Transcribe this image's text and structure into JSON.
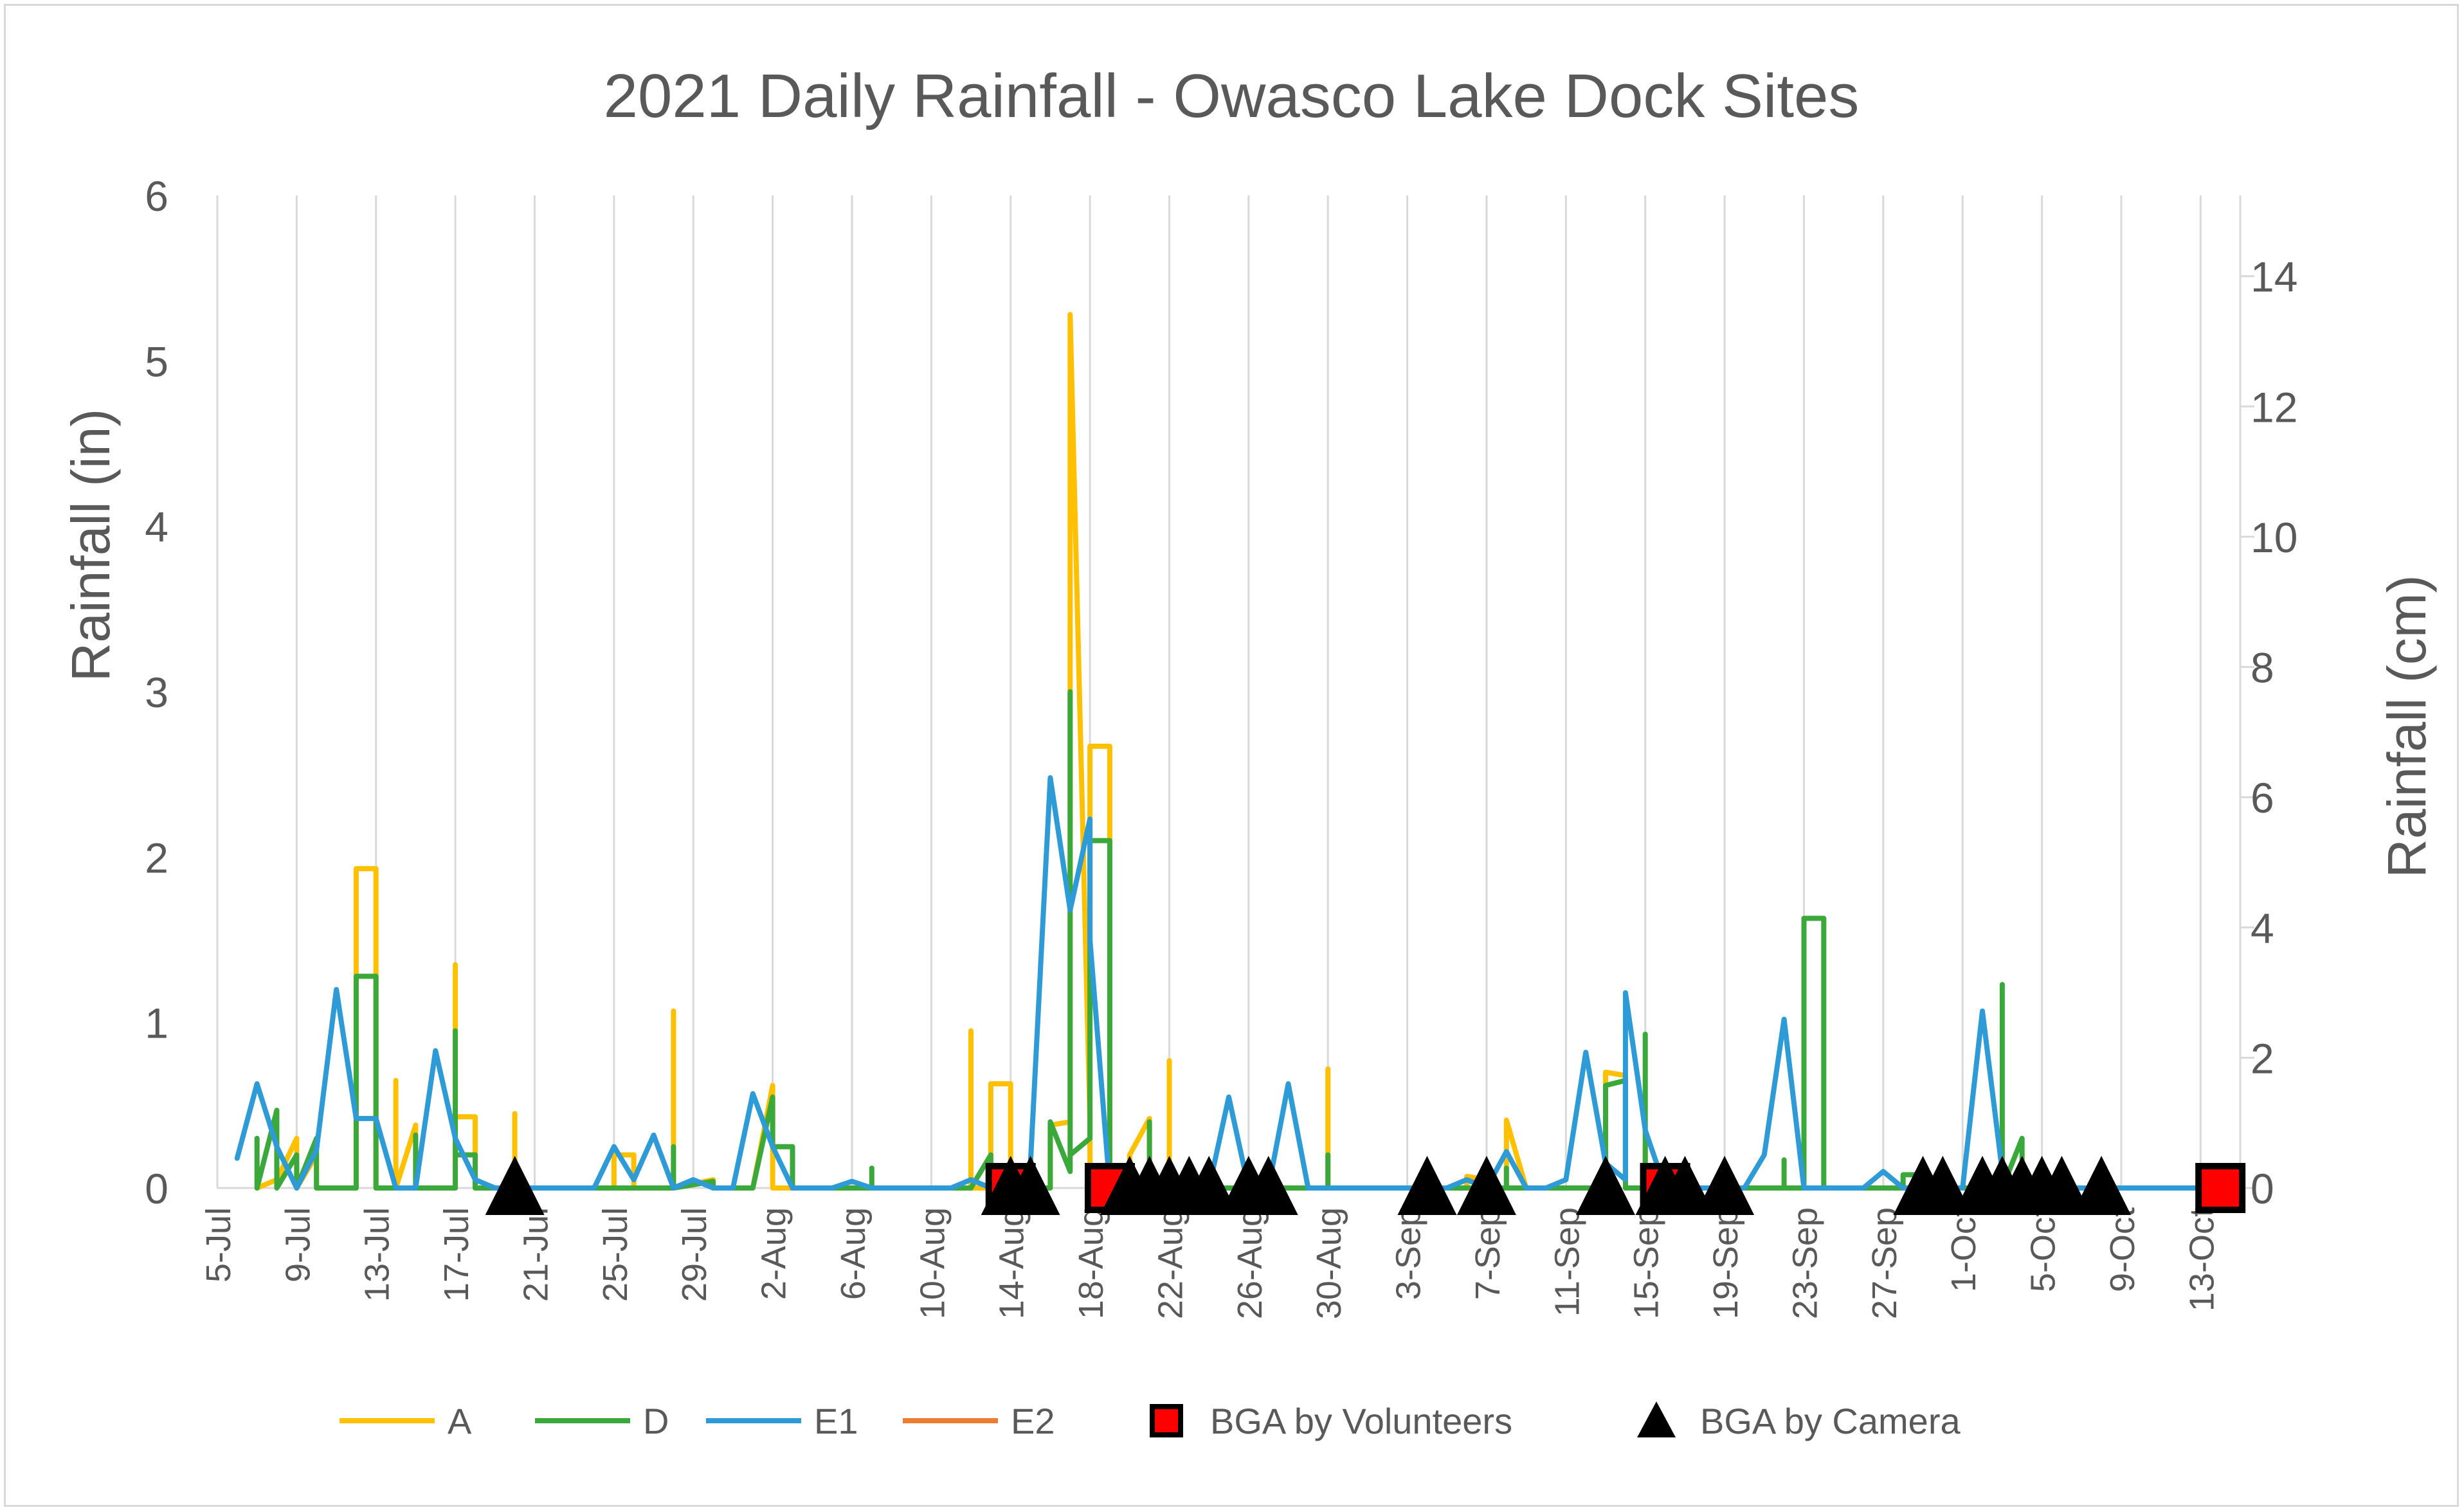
{
  "chart_data": {
    "type": "line",
    "title": "2021 Daily Rainfall - Owasco Lake Dock Sites",
    "ylabel": "Rainfall (in)",
    "y2label": "Rainfall (cm)",
    "xlabel": "",
    "ylim": [
      0,
      6
    ],
    "y2lim": [
      0,
      15.24
    ],
    "yticks": [
      0,
      1,
      2,
      3,
      4,
      5,
      6
    ],
    "y2ticks": [
      0,
      2,
      4,
      6,
      8,
      10,
      12,
      14
    ],
    "xlim": [
      "2021-07-05",
      "2021-10-15"
    ],
    "xticks": [
      {
        "date": "2021-07-05",
        "label": "5-Jul"
      },
      {
        "date": "2021-07-09",
        "label": "9-Jul"
      },
      {
        "date": "2021-07-13",
        "label": "13-Jul"
      },
      {
        "date": "2021-07-17",
        "label": "17-Jul"
      },
      {
        "date": "2021-07-21",
        "label": "21-Jul"
      },
      {
        "date": "2021-07-25",
        "label": "25-Jul"
      },
      {
        "date": "2021-07-29",
        "label": "29-Jul"
      },
      {
        "date": "2021-08-02",
        "label": "2-Aug"
      },
      {
        "date": "2021-08-06",
        "label": "6-Aug"
      },
      {
        "date": "2021-08-10",
        "label": "10-Aug"
      },
      {
        "date": "2021-08-14",
        "label": "14-Aug"
      },
      {
        "date": "2021-08-18",
        "label": "18-Aug"
      },
      {
        "date": "2021-08-22",
        "label": "22-Aug"
      },
      {
        "date": "2021-08-26",
        "label": "26-Aug"
      },
      {
        "date": "2021-08-30",
        "label": "30-Aug"
      },
      {
        "date": "2021-09-03",
        "label": "3-Sep"
      },
      {
        "date": "2021-09-07",
        "label": "7-Sep"
      },
      {
        "date": "2021-09-11",
        "label": "11-Sep"
      },
      {
        "date": "2021-09-15",
        "label": "15-Sep"
      },
      {
        "date": "2021-09-19",
        "label": "19-Sep"
      },
      {
        "date": "2021-09-23",
        "label": "23-Sep"
      },
      {
        "date": "2021-09-27",
        "label": "27-Sep"
      },
      {
        "date": "2021-10-01",
        "label": "1-Oct"
      },
      {
        "date": "2021-10-05",
        "label": "5-Oct"
      },
      {
        "date": "2021-10-09",
        "label": "9-Oct"
      },
      {
        "date": "2021-10-13",
        "label": "13-Oct"
      }
    ],
    "grid": "vertical",
    "legend_position": "bottom",
    "series": [
      {
        "name": "A",
        "color": "#FFC000",
        "points": [
          [
            "2021-07-07",
            0
          ],
          [
            "2021-07-08",
            0.05
          ],
          [
            "2021-07-09",
            0.3
          ],
          [
            "2021-07-09",
            0
          ],
          [
            "2021-07-10",
            0.2
          ],
          [
            "2021-07-10",
            0
          ],
          [
            "2021-07-12",
            0
          ],
          [
            "2021-07-12",
            1.88
          ],
          [
            "2021-07-12",
            1.93
          ],
          [
            "2021-07-13",
            1.93
          ],
          [
            "2021-07-13",
            0
          ],
          [
            "2021-07-14",
            0
          ],
          [
            "2021-07-14",
            0.65
          ],
          [
            "2021-07-14",
            0
          ],
          [
            "2021-07-15",
            0.38
          ],
          [
            "2021-07-15",
            0
          ],
          [
            "2021-07-17",
            0
          ],
          [
            "2021-07-17",
            0.4
          ],
          [
            "2021-07-17",
            1.35
          ],
          [
            "2021-07-17",
            0.43
          ],
          [
            "2021-07-18",
            0.43
          ],
          [
            "2021-07-18",
            0
          ],
          [
            "2021-07-20",
            0
          ],
          [
            "2021-07-20",
            0.45
          ],
          [
            "2021-07-20",
            0
          ],
          [
            "2021-07-25",
            0
          ],
          [
            "2021-07-25",
            0.2
          ],
          [
            "2021-07-26",
            0.2
          ],
          [
            "2021-07-26",
            0
          ],
          [
            "2021-07-28",
            0
          ],
          [
            "2021-07-28",
            1.07
          ],
          [
            "2021-07-28",
            0
          ],
          [
            "2021-07-30",
            0.05
          ],
          [
            "2021-07-30",
            0
          ],
          [
            "2021-08-01",
            0
          ],
          [
            "2021-08-02",
            0.62
          ],
          [
            "2021-08-02",
            0
          ],
          [
            "2021-08-12",
            0
          ],
          [
            "2021-08-12",
            0.95
          ],
          [
            "2021-08-12",
            0
          ],
          [
            "2021-08-13",
            0
          ],
          [
            "2021-08-13",
            0.63
          ],
          [
            "2021-08-14",
            0.63
          ],
          [
            "2021-08-14",
            0
          ],
          [
            "2021-08-16",
            0
          ],
          [
            "2021-08-16",
            0.38
          ],
          [
            "2021-08-17",
            0.4
          ],
          [
            "2021-08-17",
            4.6
          ],
          [
            "2021-08-17",
            5.28
          ],
          [
            "2021-08-18",
            0.4
          ],
          [
            "2021-08-18",
            0
          ],
          [
            "2021-08-18",
            2.6
          ],
          [
            "2021-08-18",
            2.67
          ],
          [
            "2021-08-19",
            2.67
          ],
          [
            "2021-08-19",
            0
          ],
          [
            "2021-08-20",
            0
          ],
          [
            "2021-08-20",
            0.2
          ],
          [
            "2021-08-21",
            0.42
          ],
          [
            "2021-08-21",
            0
          ],
          [
            "2021-08-22",
            0
          ],
          [
            "2021-08-22",
            0.77
          ],
          [
            "2021-08-22",
            0
          ],
          [
            "2021-08-30",
            0
          ],
          [
            "2021-08-30",
            0.72
          ],
          [
            "2021-08-30",
            0
          ],
          [
            "2021-09-06",
            0
          ],
          [
            "2021-09-06",
            0.07
          ],
          [
            "2021-09-07",
            0.05
          ],
          [
            "2021-09-07",
            0
          ],
          [
            "2021-09-08",
            0
          ],
          [
            "2021-09-08",
            0.4
          ],
          [
            "2021-09-08",
            0.41
          ],
          [
            "2021-09-09",
            0
          ],
          [
            "2021-09-13",
            0
          ],
          [
            "2021-09-13",
            0.7
          ],
          [
            "2021-09-14",
            0.68
          ],
          [
            "2021-09-14",
            0
          ],
          [
            "2021-09-15",
            0
          ],
          [
            "2021-09-15",
            0.25
          ],
          [
            "2021-09-15",
            0
          ],
          [
            "2021-10-14",
            0
          ]
        ]
      },
      {
        "name": "D",
        "color": "#3BA83B",
        "points": [
          [
            "2021-07-07",
            0
          ],
          [
            "2021-07-07",
            0.3
          ],
          [
            "2021-07-07",
            0
          ],
          [
            "2021-07-08",
            0.47
          ],
          [
            "2021-07-08",
            0
          ],
          [
            "2021-07-09",
            0.2
          ],
          [
            "2021-07-09",
            0
          ],
          [
            "2021-07-10",
            0.3
          ],
          [
            "2021-07-10",
            0
          ],
          [
            "2021-07-12",
            0
          ],
          [
            "2021-07-12",
            0.9
          ],
          [
            "2021-07-12",
            1.28
          ],
          [
            "2021-07-13",
            1.28
          ],
          [
            "2021-07-13",
            0
          ],
          [
            "2021-07-15",
            0
          ],
          [
            "2021-07-15",
            0.32
          ],
          [
            "2021-07-15",
            0
          ],
          [
            "2021-07-17",
            0
          ],
          [
            "2021-07-17",
            0.95
          ],
          [
            "2021-07-17",
            0.2
          ],
          [
            "2021-07-18",
            0.2
          ],
          [
            "2021-07-18",
            0
          ],
          [
            "2021-07-28",
            0
          ],
          [
            "2021-07-28",
            0.25
          ],
          [
            "2021-07-28",
            0
          ],
          [
            "2021-07-30",
            0.04
          ],
          [
            "2021-07-30",
            0
          ],
          [
            "2021-08-01",
            0
          ],
          [
            "2021-08-02",
            0.55
          ],
          [
            "2021-08-02",
            0.25
          ],
          [
            "2021-08-03",
            0.25
          ],
          [
            "2021-08-03",
            0
          ],
          [
            "2021-08-07",
            0
          ],
          [
            "2021-08-07",
            0.12
          ],
          [
            "2021-08-07",
            0
          ],
          [
            "2021-08-12",
            0
          ],
          [
            "2021-08-13",
            0.2
          ],
          [
            "2021-08-13",
            0
          ],
          [
            "2021-08-16",
            0
          ],
          [
            "2021-08-16",
            0.4
          ],
          [
            "2021-08-17",
            0.1
          ],
          [
            "2021-08-17",
            3.0
          ],
          [
            "2021-08-17",
            0.2
          ],
          [
            "2021-08-18",
            0.3
          ],
          [
            "2021-08-18",
            1.45
          ],
          [
            "2021-08-18",
            2.1
          ],
          [
            "2021-08-19",
            2.1
          ],
          [
            "2021-08-19",
            0
          ],
          [
            "2021-08-21",
            0
          ],
          [
            "2021-08-21",
            0.4
          ],
          [
            "2021-08-21",
            0
          ],
          [
            "2021-08-30",
            0
          ],
          [
            "2021-08-30",
            0.2
          ],
          [
            "2021-08-30",
            0
          ],
          [
            "2021-09-08",
            0
          ],
          [
            "2021-09-08",
            0.12
          ],
          [
            "2021-09-08",
            0
          ],
          [
            "2021-09-13",
            0
          ],
          [
            "2021-09-13",
            0.62
          ],
          [
            "2021-09-14",
            0.65
          ],
          [
            "2021-09-14",
            0
          ],
          [
            "2021-09-15",
            0
          ],
          [
            "2021-09-15",
            0.93
          ],
          [
            "2021-09-15",
            0
          ],
          [
            "2021-09-22",
            0
          ],
          [
            "2021-09-22",
            0.17
          ],
          [
            "2021-09-22",
            0
          ],
          [
            "2021-09-23",
            0
          ],
          [
            "2021-09-23",
            1.63
          ],
          [
            "2021-09-24",
            1.63
          ],
          [
            "2021-09-24",
            0
          ],
          [
            "2021-09-28",
            0
          ],
          [
            "2021-09-28",
            0.08
          ],
          [
            "2021-09-29",
            0.08
          ],
          [
            "2021-09-29",
            0
          ],
          [
            "2021-10-03",
            0
          ],
          [
            "2021-10-03",
            1.23
          ],
          [
            "2021-10-03",
            0
          ],
          [
            "2021-10-04",
            0.3
          ],
          [
            "2021-10-04",
            0
          ],
          [
            "2021-10-14",
            0
          ]
        ]
      },
      {
        "name": "E1",
        "color": "#2E9BD6",
        "points": [
          [
            "2021-07-06",
            0.18
          ],
          [
            "2021-07-07",
            0.63
          ],
          [
            "2021-07-08",
            0.25
          ],
          [
            "2021-07-09",
            0
          ],
          [
            "2021-07-10",
            0.23
          ],
          [
            "2021-07-11",
            1.2
          ],
          [
            "2021-07-12",
            0.42
          ],
          [
            "2021-07-13",
            0.42
          ],
          [
            "2021-07-14",
            0
          ],
          [
            "2021-07-15",
            0
          ],
          [
            "2021-07-16",
            0.83
          ],
          [
            "2021-07-17",
            0.3
          ],
          [
            "2021-07-18",
            0.05
          ],
          [
            "2021-07-19",
            0
          ],
          [
            "2021-07-24",
            0
          ],
          [
            "2021-07-25",
            0.25
          ],
          [
            "2021-07-26",
            0.05
          ],
          [
            "2021-07-27",
            0.32
          ],
          [
            "2021-07-28",
            0
          ],
          [
            "2021-07-29",
            0.05
          ],
          [
            "2021-07-30",
            0
          ],
          [
            "2021-07-31",
            0
          ],
          [
            "2021-08-01",
            0.57
          ],
          [
            "2021-08-02",
            0.25
          ],
          [
            "2021-08-03",
            0
          ],
          [
            "2021-08-05",
            0
          ],
          [
            "2021-08-06",
            0.04
          ],
          [
            "2021-08-07",
            0
          ],
          [
            "2021-08-11",
            0
          ],
          [
            "2021-08-12",
            0.05
          ],
          [
            "2021-08-13",
            0
          ],
          [
            "2021-08-14",
            0
          ],
          [
            "2021-08-15",
            0.15
          ],
          [
            "2021-08-16",
            2.48
          ],
          [
            "2021-08-17",
            1.68
          ],
          [
            "2021-08-18",
            2.23
          ],
          [
            "2021-08-18",
            1.5
          ],
          [
            "2021-08-19",
            0
          ],
          [
            "2021-08-24",
            0
          ],
          [
            "2021-08-25",
            0.55
          ],
          [
            "2021-08-26",
            0
          ],
          [
            "2021-08-27",
            0
          ],
          [
            "2021-08-28",
            0.63
          ],
          [
            "2021-08-29",
            0
          ],
          [
            "2021-09-05",
            0
          ],
          [
            "2021-09-06",
            0.05
          ],
          [
            "2021-09-07",
            0
          ],
          [
            "2021-09-08",
            0.22
          ],
          [
            "2021-09-09",
            0
          ],
          [
            "2021-09-10",
            0
          ],
          [
            "2021-09-11",
            0.05
          ],
          [
            "2021-09-12",
            0.82
          ],
          [
            "2021-09-13",
            0.15
          ],
          [
            "2021-09-14",
            0.05
          ],
          [
            "2021-09-14",
            1.18
          ],
          [
            "2021-09-15",
            0.35
          ],
          [
            "2021-09-16",
            0
          ],
          [
            "2021-09-20",
            0
          ],
          [
            "2021-09-21",
            0.2
          ],
          [
            "2021-09-22",
            1.02
          ],
          [
            "2021-09-23",
            0
          ],
          [
            "2021-09-26",
            0
          ],
          [
            "2021-09-27",
            0.1
          ],
          [
            "2021-09-28",
            0
          ],
          [
            "2021-10-01",
            0
          ],
          [
            "2021-10-02",
            1.07
          ],
          [
            "2021-10-03",
            0.1
          ],
          [
            "2021-10-04",
            0
          ],
          [
            "2021-10-14",
            0
          ]
        ]
      },
      {
        "name": "E2",
        "color": "#ED7D31",
        "points": []
      }
    ],
    "markers": [
      {
        "name": "BGA by Volunteers",
        "shape": "square",
        "fill": "#FF0000",
        "stroke": "#000000",
        "dates": [
          "2021-08-14",
          "2021-08-19",
          "2021-09-16",
          "2021-10-14"
        ]
      },
      {
        "name": "BGA by Camera",
        "shape": "triangle",
        "fill": "#000000",
        "dates": [
          "2021-07-20",
          "2021-08-14",
          "2021-08-15",
          "2021-08-20",
          "2021-08-21",
          "2021-08-22",
          "2021-08-23",
          "2021-08-24",
          "2021-08-26",
          "2021-08-27",
          "2021-09-04",
          "2021-09-07",
          "2021-09-13",
          "2021-09-16",
          "2021-09-17",
          "2021-09-19",
          "2021-09-29",
          "2021-09-30",
          "2021-10-02",
          "2021-10-03",
          "2021-10-04",
          "2021-10-05",
          "2021-10-06",
          "2021-10-08"
        ]
      }
    ]
  }
}
